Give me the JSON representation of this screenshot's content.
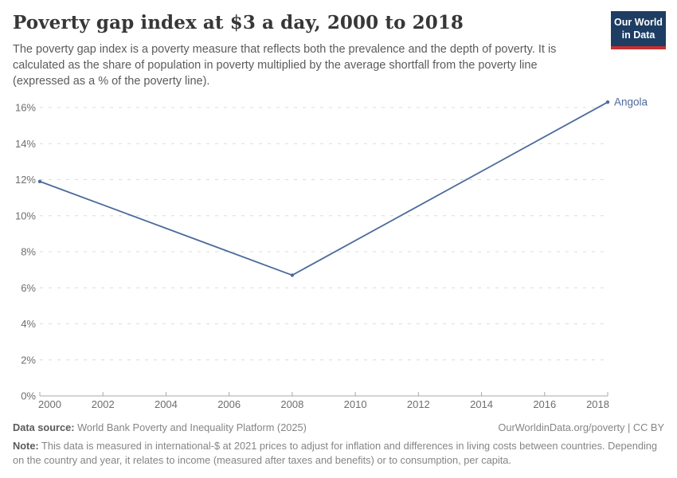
{
  "header": {
    "title": "Poverty gap index at $3 a day, 2000 to 2018",
    "subtitle": "The poverty gap index is a poverty measure that reflects both the prevalence and the depth of poverty. It is calculated as the share of population in poverty multiplied by the average shortfall from the poverty line (expressed as a % of the poverty line).",
    "logo_line1": "Our World",
    "logo_line2": "in Data"
  },
  "chart_data": {
    "type": "line",
    "title": "Poverty gap index at $3 a day, 2000 to 2018",
    "x": [
      2000,
      2008,
      2018
    ],
    "series": [
      {
        "name": "Angola",
        "values": [
          11.9,
          6.7,
          16.3
        ],
        "color": "#4c6a9c"
      }
    ],
    "end_label": "Angola",
    "xlabel": "",
    "ylabel": "",
    "xlim": [
      2000,
      2018
    ],
    "ylim": [
      0,
      16
    ],
    "xticks": [
      2000,
      2002,
      2004,
      2006,
      2008,
      2010,
      2012,
      2014,
      2016,
      2018
    ],
    "yticks": [
      0,
      2,
      4,
      6,
      8,
      10,
      12,
      14,
      16
    ],
    "ytick_suffix": "%",
    "grid": "horizontal-dashed",
    "legend_position": "line-end-label"
  },
  "footer": {
    "source_label": "Data source:",
    "source_text": " World Bank Poverty and Inequality Platform (2025)",
    "link": "OurWorldinData.org/poverty | CC BY",
    "note_label": "Note:",
    "note_text": " This data is measured in international-$ at 2021 prices to adjust for inflation and differences in living costs between countries. Depending on the country and year, it relates to income (measured after taxes and benefits) or to consumption, per capita."
  },
  "colors": {
    "line": "#4c6a9c",
    "entity_label": "#4c6a9c",
    "grid": "#dcdcdc",
    "axis": "#a8a8a8",
    "tick_label": "#6e6e6e",
    "title": "#383636",
    "subtitle": "#5b5b5b",
    "footer_text": "#858585",
    "logo_bg": "#1d3d63",
    "logo_accent": "#c5302f"
  }
}
